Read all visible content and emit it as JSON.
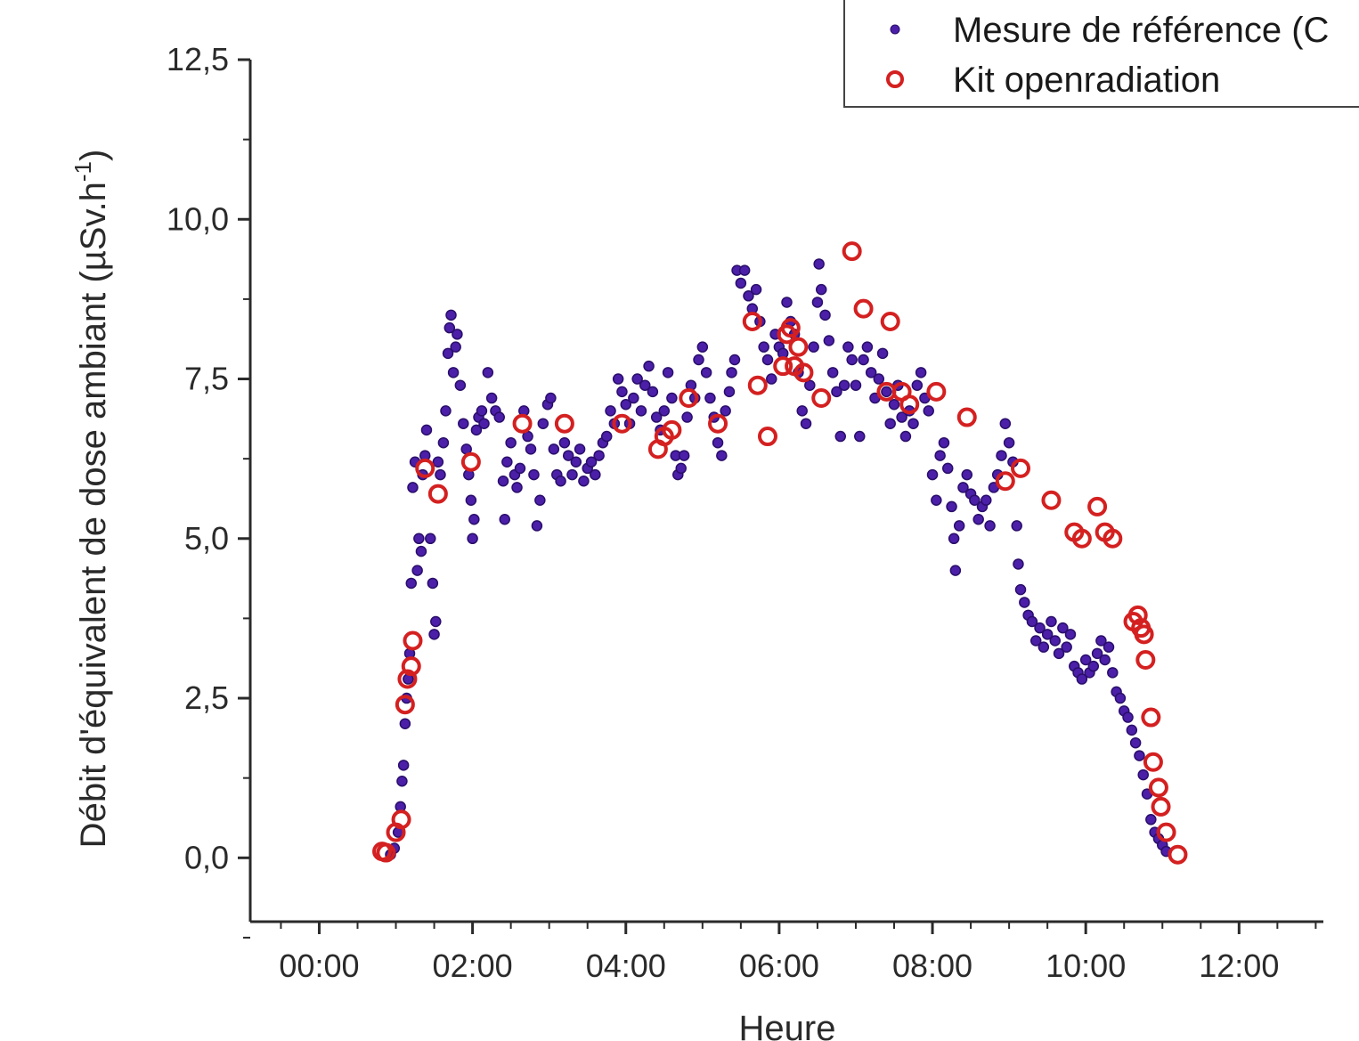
{
  "chart_data": {
    "type": "scatter",
    "title": "",
    "xlabel": "Heure",
    "ylabel": "Débit d'équivalent de dose ambiant (µSv.h",
    "ylabel_superscript": "-1",
    "ylabel_close": ")",
    "x_unit": "hours",
    "xlim": [
      -0.9,
      13.1
    ],
    "ylim": [
      -1.0,
      12.5
    ],
    "x_ticks": [
      0,
      2,
      4,
      6,
      8,
      10,
      12
    ],
    "x_tick_labels": [
      "00:00",
      "02:00",
      "04:00",
      "06:00",
      "08:00",
      "10:00",
      "12:00"
    ],
    "y_ticks": [
      0,
      2.5,
      5,
      7.5,
      10,
      12.5
    ],
    "y_tick_labels": [
      "0,0",
      "2,5",
      "5,0",
      "7,5",
      "10,0",
      "12,5"
    ],
    "grid": false,
    "legend_position": "top-right",
    "series": [
      {
        "name": "Mesure de référence (C",
        "color": "#4b1fa8",
        "edge": "#2a0e6b",
        "marker": "filled-dot",
        "points": [
          [
            0.93,
            0.05
          ],
          [
            0.98,
            0.15
          ],
          [
            1.03,
            0.4
          ],
          [
            1.06,
            0.8
          ],
          [
            1.08,
            1.2
          ],
          [
            1.1,
            1.45
          ],
          [
            1.12,
            2.1
          ],
          [
            1.14,
            2.5
          ],
          [
            1.16,
            2.8
          ],
          [
            1.18,
            3.2
          ],
          [
            1.2,
            4.3
          ],
          [
            1.22,
            5.8
          ],
          [
            1.25,
            6.2
          ],
          [
            1.28,
            4.5
          ],
          [
            1.3,
            5.0
          ],
          [
            1.33,
            4.8
          ],
          [
            1.35,
            6.0
          ],
          [
            1.38,
            6.3
          ],
          [
            1.4,
            6.7
          ],
          [
            1.45,
            5.0
          ],
          [
            1.48,
            4.3
          ],
          [
            1.5,
            3.5
          ],
          [
            1.52,
            3.7
          ],
          [
            1.55,
            6.2
          ],
          [
            1.58,
            6.0
          ],
          [
            1.62,
            6.5
          ],
          [
            1.65,
            7.0
          ],
          [
            1.68,
            7.9
          ],
          [
            1.7,
            8.3
          ],
          [
            1.72,
            8.5
          ],
          [
            1.75,
            7.6
          ],
          [
            1.78,
            8.0
          ],
          [
            1.8,
            8.2
          ],
          [
            1.84,
            7.4
          ],
          [
            1.88,
            6.8
          ],
          [
            1.92,
            6.4
          ],
          [
            1.95,
            6.0
          ],
          [
            1.98,
            5.6
          ],
          [
            2.0,
            5.0
          ],
          [
            2.02,
            5.3
          ],
          [
            2.05,
            6.7
          ],
          [
            2.08,
            6.9
          ],
          [
            2.12,
            7.0
          ],
          [
            2.15,
            6.8
          ],
          [
            2.2,
            7.6
          ],
          [
            2.25,
            7.2
          ],
          [
            2.3,
            7.0
          ],
          [
            2.35,
            6.9
          ],
          [
            2.4,
            5.9
          ],
          [
            2.42,
            5.3
          ],
          [
            2.45,
            6.2
          ],
          [
            2.5,
            6.5
          ],
          [
            2.55,
            6.0
          ],
          [
            2.58,
            5.8
          ],
          [
            2.62,
            6.1
          ],
          [
            2.67,
            7.0
          ],
          [
            2.72,
            6.6
          ],
          [
            2.76,
            6.4
          ],
          [
            2.8,
            6.0
          ],
          [
            2.84,
            5.2
          ],
          [
            2.88,
            5.6
          ],
          [
            2.92,
            6.8
          ],
          [
            2.98,
            7.1
          ],
          [
            3.02,
            7.2
          ],
          [
            3.06,
            6.4
          ],
          [
            3.1,
            6.0
          ],
          [
            3.15,
            5.9
          ],
          [
            3.2,
            6.5
          ],
          [
            3.25,
            6.3
          ],
          [
            3.3,
            6.0
          ],
          [
            3.35,
            6.2
          ],
          [
            3.4,
            6.4
          ],
          [
            3.45,
            5.9
          ],
          [
            3.5,
            6.1
          ],
          [
            3.55,
            6.2
          ],
          [
            3.6,
            6.0
          ],
          [
            3.65,
            6.3
          ],
          [
            3.7,
            6.5
          ],
          [
            3.75,
            6.6
          ],
          [
            3.8,
            7.0
          ],
          [
            3.85,
            6.8
          ],
          [
            3.9,
            7.5
          ],
          [
            3.95,
            7.3
          ],
          [
            4.0,
            7.1
          ],
          [
            4.05,
            6.8
          ],
          [
            4.1,
            7.2
          ],
          [
            4.15,
            7.5
          ],
          [
            4.2,
            7.0
          ],
          [
            4.25,
            7.4
          ],
          [
            4.3,
            7.7
          ],
          [
            4.35,
            7.3
          ],
          [
            4.4,
            6.9
          ],
          [
            4.45,
            6.7
          ],
          [
            4.5,
            7.0
          ],
          [
            4.55,
            7.6
          ],
          [
            4.6,
            7.2
          ],
          [
            4.65,
            6.3
          ],
          [
            4.68,
            6.0
          ],
          [
            4.72,
            6.1
          ],
          [
            4.76,
            6.3
          ],
          [
            4.8,
            6.9
          ],
          [
            4.85,
            7.4
          ],
          [
            4.9,
            7.2
          ],
          [
            4.95,
            7.8
          ],
          [
            5.0,
            8.0
          ],
          [
            5.05,
            7.6
          ],
          [
            5.1,
            7.2
          ],
          [
            5.15,
            6.9
          ],
          [
            5.2,
            6.5
          ],
          [
            5.25,
            6.3
          ],
          [
            5.3,
            7.0
          ],
          [
            5.35,
            7.3
          ],
          [
            5.38,
            7.6
          ],
          [
            5.42,
            7.8
          ],
          [
            5.45,
            9.2
          ],
          [
            5.5,
            9.0
          ],
          [
            5.55,
            9.2
          ],
          [
            5.6,
            8.8
          ],
          [
            5.65,
            8.6
          ],
          [
            5.7,
            8.9
          ],
          [
            5.75,
            8.4
          ],
          [
            5.8,
            8.0
          ],
          [
            5.85,
            7.8
          ],
          [
            5.9,
            7.5
          ],
          [
            5.95,
            8.2
          ],
          [
            6.0,
            8.0
          ],
          [
            6.05,
            7.9
          ],
          [
            6.1,
            8.7
          ],
          [
            6.15,
            8.4
          ],
          [
            6.2,
            8.2
          ],
          [
            6.25,
            7.6
          ],
          [
            6.3,
            7.0
          ],
          [
            6.35,
            6.8
          ],
          [
            6.4,
            7.4
          ],
          [
            6.45,
            8.0
          ],
          [
            6.5,
            8.7
          ],
          [
            6.52,
            9.3
          ],
          [
            6.55,
            8.9
          ],
          [
            6.6,
            8.5
          ],
          [
            6.65,
            8.1
          ],
          [
            6.7,
            7.6
          ],
          [
            6.75,
            7.3
          ],
          [
            6.8,
            6.6
          ],
          [
            6.85,
            7.4
          ],
          [
            6.9,
            8.0
          ],
          [
            6.95,
            7.8
          ],
          [
            7.0,
            7.4
          ],
          [
            7.05,
            6.6
          ],
          [
            7.1,
            7.8
          ],
          [
            7.15,
            8.0
          ],
          [
            7.2,
            7.6
          ],
          [
            7.25,
            7.2
          ],
          [
            7.3,
            7.5
          ],
          [
            7.35,
            7.9
          ],
          [
            7.4,
            7.3
          ],
          [
            7.45,
            6.8
          ],
          [
            7.5,
            7.1
          ],
          [
            7.55,
            7.4
          ],
          [
            7.6,
            6.9
          ],
          [
            7.65,
            6.6
          ],
          [
            7.7,
            7.0
          ],
          [
            7.75,
            6.8
          ],
          [
            7.8,
            7.4
          ],
          [
            7.85,
            7.6
          ],
          [
            7.9,
            7.2
          ],
          [
            7.95,
            7.0
          ],
          [
            8.0,
            6.0
          ],
          [
            8.05,
            5.6
          ],
          [
            8.1,
            6.3
          ],
          [
            8.15,
            6.5
          ],
          [
            8.2,
            6.1
          ],
          [
            8.25,
            5.5
          ],
          [
            8.28,
            5.0
          ],
          [
            8.3,
            4.5
          ],
          [
            8.35,
            5.2
          ],
          [
            8.4,
            5.8
          ],
          [
            8.45,
            6.0
          ],
          [
            8.5,
            5.7
          ],
          [
            8.55,
            5.6
          ],
          [
            8.6,
            5.3
          ],
          [
            8.65,
            5.5
          ],
          [
            8.7,
            5.6
          ],
          [
            8.75,
            5.2
          ],
          [
            8.8,
            5.8
          ],
          [
            8.85,
            6.0
          ],
          [
            8.9,
            6.3
          ],
          [
            8.95,
            6.8
          ],
          [
            9.0,
            6.5
          ],
          [
            9.05,
            6.2
          ],
          [
            9.1,
            5.2
          ],
          [
            9.12,
            4.6
          ],
          [
            9.15,
            4.2
          ],
          [
            9.2,
            4.0
          ],
          [
            9.25,
            3.8
          ],
          [
            9.3,
            3.7
          ],
          [
            9.35,
            3.4
          ],
          [
            9.4,
            3.6
          ],
          [
            9.45,
            3.3
          ],
          [
            9.5,
            3.5
          ],
          [
            9.55,
            3.7
          ],
          [
            9.6,
            3.4
          ],
          [
            9.65,
            3.2
          ],
          [
            9.7,
            3.6
          ],
          [
            9.75,
            3.3
          ],
          [
            9.8,
            3.5
          ],
          [
            9.85,
            3.0
          ],
          [
            9.9,
            2.9
          ],
          [
            9.95,
            2.8
          ],
          [
            10.0,
            3.1
          ],
          [
            10.05,
            2.9
          ],
          [
            10.1,
            3.0
          ],
          [
            10.15,
            3.2
          ],
          [
            10.2,
            3.4
          ],
          [
            10.25,
            3.1
          ],
          [
            10.3,
            3.3
          ],
          [
            10.35,
            2.9
          ],
          [
            10.4,
            2.6
          ],
          [
            10.45,
            2.5
          ],
          [
            10.5,
            2.3
          ],
          [
            10.55,
            2.2
          ],
          [
            10.6,
            2.0
          ],
          [
            10.65,
            1.8
          ],
          [
            10.7,
            1.6
          ],
          [
            10.75,
            1.3
          ],
          [
            10.8,
            1.0
          ],
          [
            10.85,
            0.6
          ],
          [
            10.9,
            0.4
          ],
          [
            10.95,
            0.3
          ],
          [
            11.0,
            0.2
          ],
          [
            11.05,
            0.1
          ]
        ]
      },
      {
        "name": "Kit openradiation",
        "color": "#d42020",
        "marker": "open-circle",
        "points": [
          [
            0.82,
            0.1
          ],
          [
            0.87,
            0.08
          ],
          [
            1.0,
            0.4
          ],
          [
            1.07,
            0.6
          ],
          [
            1.12,
            2.4
          ],
          [
            1.15,
            2.8
          ],
          [
            1.2,
            3.0
          ],
          [
            1.22,
            3.4
          ],
          [
            1.38,
            6.1
          ],
          [
            1.55,
            5.7
          ],
          [
            1.98,
            6.2
          ],
          [
            2.65,
            6.8
          ],
          [
            3.2,
            6.8
          ],
          [
            3.95,
            6.8
          ],
          [
            4.42,
            6.4
          ],
          [
            4.5,
            6.6
          ],
          [
            4.6,
            6.7
          ],
          [
            4.82,
            7.2
          ],
          [
            5.2,
            6.8
          ],
          [
            5.65,
            8.4
          ],
          [
            5.72,
            7.4
          ],
          [
            5.85,
            6.6
          ],
          [
            6.05,
            7.7
          ],
          [
            6.1,
            8.2
          ],
          [
            6.15,
            8.3
          ],
          [
            6.2,
            7.7
          ],
          [
            6.25,
            8.0
          ],
          [
            6.32,
            7.6
          ],
          [
            6.55,
            7.2
          ],
          [
            6.95,
            9.5
          ],
          [
            7.1,
            8.6
          ],
          [
            7.45,
            8.4
          ],
          [
            7.4,
            7.3
          ],
          [
            7.6,
            7.3
          ],
          [
            7.7,
            7.1
          ],
          [
            8.05,
            7.3
          ],
          [
            8.45,
            6.9
          ],
          [
            8.95,
            5.9
          ],
          [
            9.15,
            6.1
          ],
          [
            9.55,
            5.6
          ],
          [
            9.85,
            5.1
          ],
          [
            9.95,
            5.0
          ],
          [
            10.15,
            5.5
          ],
          [
            10.25,
            5.1
          ],
          [
            10.35,
            5.0
          ],
          [
            10.62,
            3.7
          ],
          [
            10.68,
            3.8
          ],
          [
            10.72,
            3.6
          ],
          [
            10.76,
            3.5
          ],
          [
            10.78,
            3.1
          ],
          [
            10.85,
            2.2
          ],
          [
            10.88,
            1.5
          ],
          [
            10.95,
            1.1
          ],
          [
            10.98,
            0.8
          ],
          [
            11.05,
            0.4
          ],
          [
            11.2,
            0.05
          ]
        ]
      }
    ]
  }
}
